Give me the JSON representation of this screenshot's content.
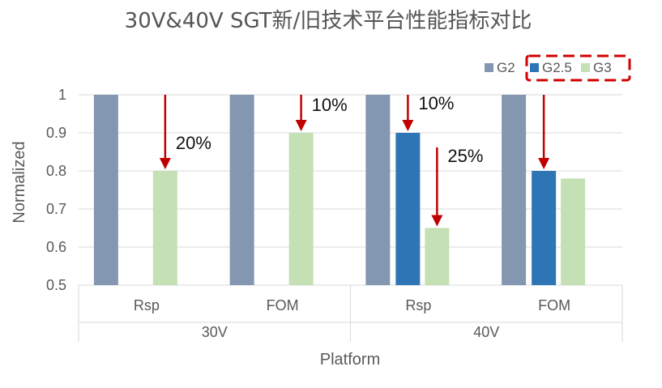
{
  "chart_data": {
    "type": "bar",
    "title": "30V&40V SGT新/旧技术平台性能指标对比",
    "xlabel": "Platform",
    "ylabel": "Normalized",
    "ylim": [
      0.5,
      1
    ],
    "yticks": [
      "0.5",
      "0.6",
      "0.7",
      "0.8",
      "0.9",
      "1"
    ],
    "grid": true,
    "legend_position": "top-right",
    "categories": [
      "Rsp",
      "FOM",
      "Rsp",
      "FOM"
    ],
    "groups": [
      {
        "label": "30V",
        "categories": [
          "Rsp",
          "FOM"
        ]
      },
      {
        "label": "40V",
        "categories": [
          "Rsp",
          "FOM"
        ]
      }
    ],
    "series": [
      {
        "name": "G2",
        "color": "#8497b0",
        "values": [
          1,
          1,
          1,
          1
        ]
      },
      {
        "name": "G2.5",
        "color": "#2e75b6",
        "values": [
          null,
          null,
          0.9,
          0.8
        ]
      },
      {
        "name": "G3",
        "color": "#c5e0b4",
        "values": [
          0.8,
          0.9,
          0.65,
          0.78
        ]
      }
    ],
    "annotations": [
      {
        "text": "20%",
        "category_index": 0,
        "from_series": "G2",
        "to_series": "G3"
      },
      {
        "text": "10%",
        "category_index": 1,
        "from_series": "G2",
        "to_series": "G3"
      },
      {
        "text": "10%",
        "category_index": 2,
        "from_series": "G2",
        "to_series": "G2.5"
      },
      {
        "text": "25%",
        "category_index": 2,
        "from_series": "G2.5",
        "to_series": "G3"
      },
      {
        "text": "",
        "category_index": 3,
        "from_series": "G2",
        "to_series": "G2.5"
      }
    ],
    "highlight": {
      "target": "legend",
      "items": [
        "G2.5",
        "G3"
      ],
      "style": "red dashed box"
    }
  }
}
